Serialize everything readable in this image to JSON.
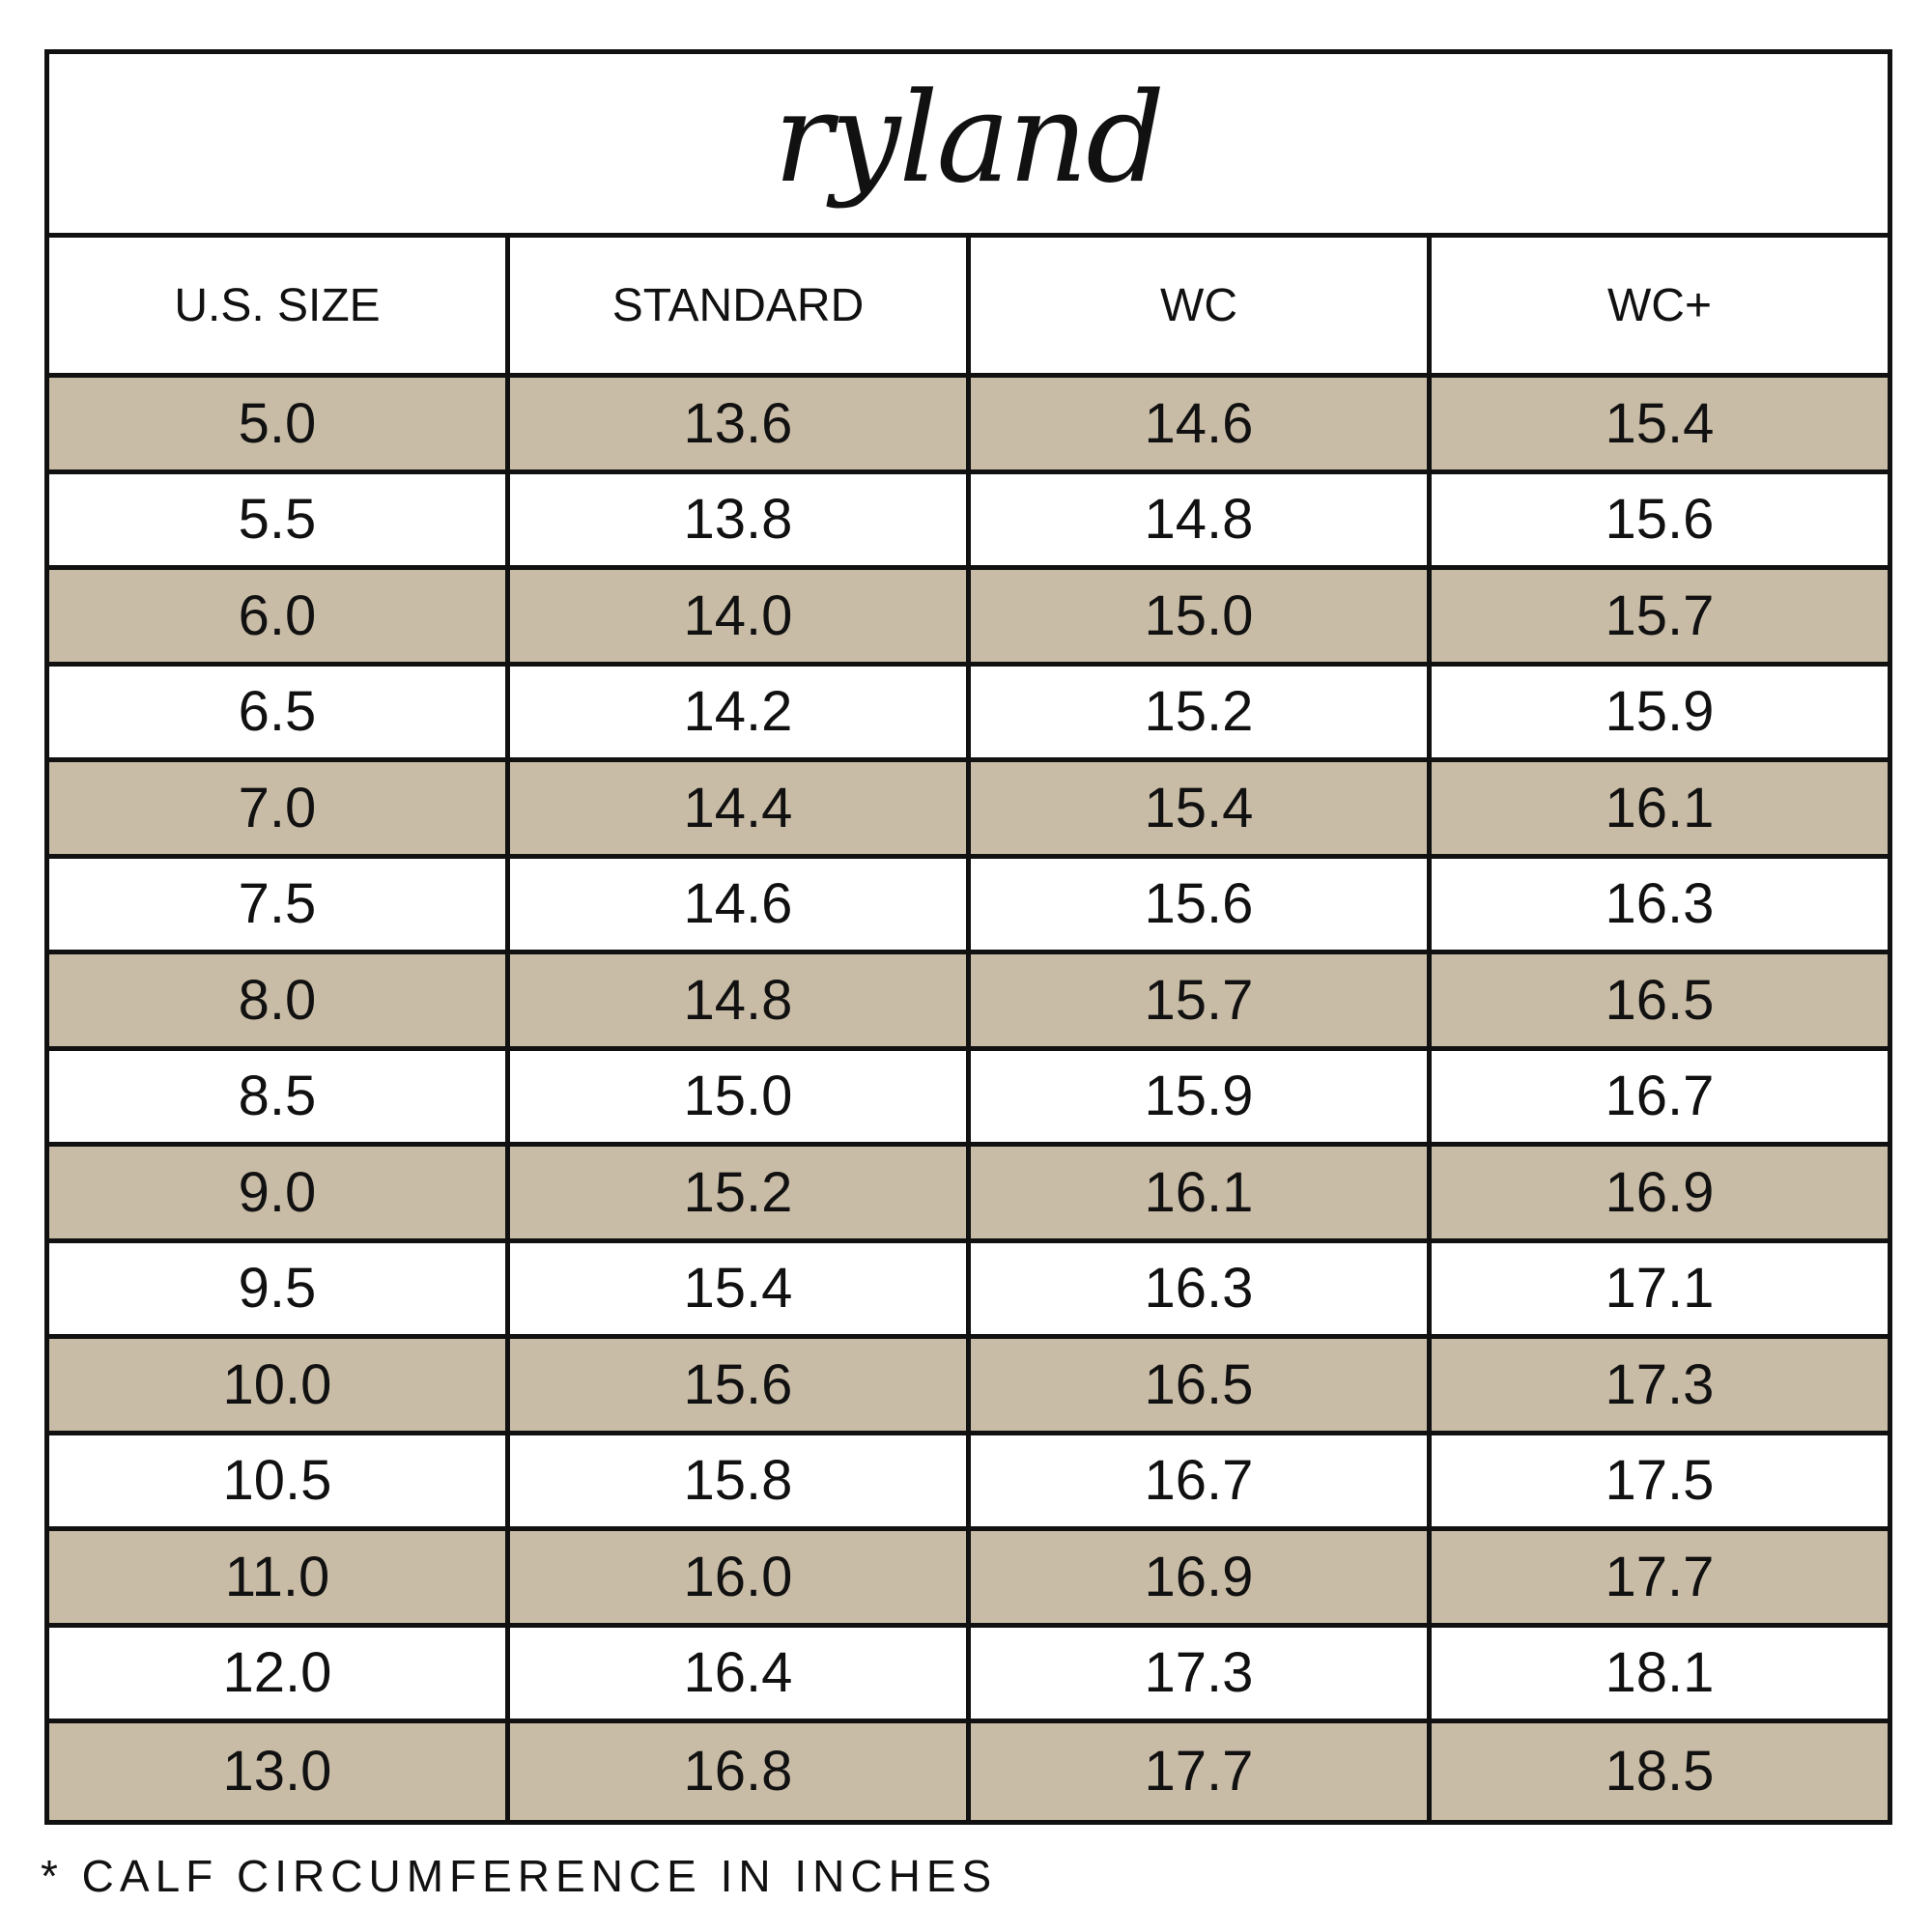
{
  "title": "ryland",
  "shade_color": "#c9bca6",
  "headers": [
    "U.S. SIZE",
    "STANDARD",
    "WC",
    "WC+"
  ],
  "rows": [
    [
      "5.0",
      "13.6",
      "14.6",
      "15.4"
    ],
    [
      "5.5",
      "13.8",
      "14.8",
      "15.6"
    ],
    [
      "6.0",
      "14.0",
      "15.0",
      "15.7"
    ],
    [
      "6.5",
      "14.2",
      "15.2",
      "15.9"
    ],
    [
      "7.0",
      "14.4",
      "15.4",
      "16.1"
    ],
    [
      "7.5",
      "14.6",
      "15.6",
      "16.3"
    ],
    [
      "8.0",
      "14.8",
      "15.7",
      "16.5"
    ],
    [
      "8.5",
      "15.0",
      "15.9",
      "16.7"
    ],
    [
      "9.0",
      "15.2",
      "16.1",
      "16.9"
    ],
    [
      "9.5",
      "15.4",
      "16.3",
      "17.1"
    ],
    [
      "10.0",
      "15.6",
      "16.5",
      "17.3"
    ],
    [
      "10.5",
      "15.8",
      "16.7",
      "17.5"
    ],
    [
      "11.0",
      "16.0",
      "16.9",
      "17.7"
    ],
    [
      "12.0",
      "16.4",
      "17.3",
      "18.1"
    ],
    [
      "13.0",
      "16.8",
      "17.7",
      "18.5"
    ]
  ],
  "footnote": "* CALF CIRCUMFERENCE IN INCHES"
}
